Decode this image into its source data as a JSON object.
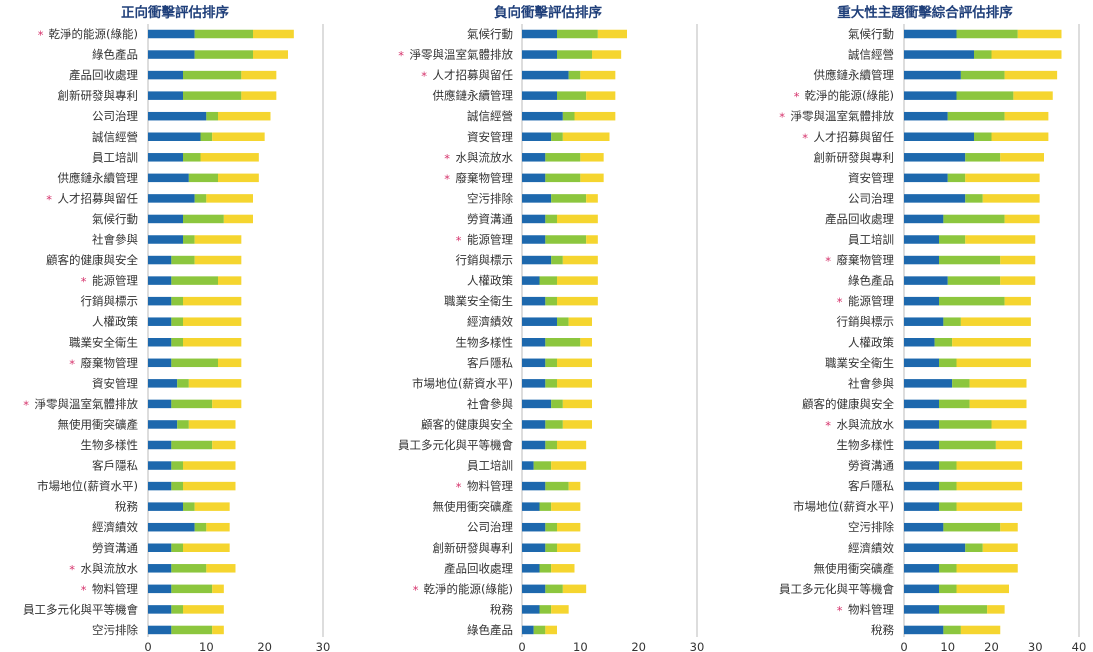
{
  "colors": {
    "low": "#1d68ad",
    "mid": "#8cc63e",
    "high": "#f5d52f",
    "star": "#d6336c",
    "title": "#1f3f7a",
    "grid": "#bbbbbb"
  },
  "chart_data": [
    {
      "type": "bar",
      "stacked": true,
      "orientation": "horizontal",
      "title": "正向衝擊評估排序",
      "xlim": [
        0,
        30
      ],
      "xticks": [
        0,
        10,
        20,
        30
      ],
      "categories": [
        "乾淨的能源(綠能)",
        "綠色產品",
        "產品回收處理",
        "創新研發與專利",
        "公司治理",
        "誠信經營",
        "員工培訓",
        "供應鏈永續管理",
        "人才招募與留任",
        "氣候行動",
        "社會參與",
        "顧客的健康與安全",
        "能源管理",
        "行銷與標示",
        "人權政策",
        "職業安全衛生",
        "廢棄物管理",
        "資安管理",
        "淨零與溫室氣體排放",
        "無使用衝突礦產",
        "生物多樣性",
        "客戶隱私",
        "市場地位(薪資水平)",
        "稅務",
        "經濟績效",
        "勞資溝通",
        "水與流放水",
        "物料管理",
        "員工多元化與平等機會",
        "空污排除"
      ],
      "starred": [
        "乾淨的能源(綠能)",
        "人才招募與留任",
        "能源管理",
        "廢棄物管理",
        "淨零與溫室氣體排放",
        "水與流放水",
        "物料管理"
      ],
      "series": [
        {
          "values": [
            8,
            8,
            6,
            6,
            10,
            9,
            6,
            7,
            8,
            6,
            6,
            4,
            4,
            4,
            4,
            4,
            4,
            5,
            4,
            5,
            4,
            4,
            4,
            6,
            8,
            4,
            4,
            4,
            4,
            4
          ]
        },
        {
          "values": [
            10,
            10,
            10,
            10,
            2,
            2,
            3,
            5,
            2,
            7,
            2,
            4,
            8,
            2,
            2,
            2,
            8,
            2,
            7,
            2,
            7,
            2,
            2,
            2,
            2,
            2,
            6,
            7,
            2,
            7
          ]
        },
        {
          "values": [
            7,
            6,
            6,
            6,
            9,
            9,
            10,
            7,
            8,
            5,
            8,
            8,
            4,
            10,
            10,
            10,
            4,
            9,
            5,
            8,
            4,
            9,
            9,
            6,
            4,
            8,
            5,
            2,
            7,
            2
          ]
        }
      ]
    },
    {
      "type": "bar",
      "stacked": true,
      "orientation": "horizontal",
      "title": "負向衝擊評估排序",
      "xlim": [
        0,
        30
      ],
      "xticks": [
        0,
        10,
        20,
        30
      ],
      "categories": [
        "氣候行動",
        "淨零與溫室氣體排放",
        "人才招募與留任",
        "供應鏈永續管理",
        "誠信經營",
        "資安管理",
        "水與流放水",
        "廢棄物管理",
        "空污排除",
        "勞資溝通",
        "能源管理",
        "行銷與標示",
        "人權政策",
        "職業安全衛生",
        "經濟績效",
        "生物多樣性",
        "客戶隱私",
        "市場地位(薪資水平)",
        "社會參與",
        "顧客的健康與安全",
        "員工多元化與平等機會",
        "員工培訓",
        "物料管理",
        "無使用衝突礦產",
        "公司治理",
        "創新研發與專利",
        "產品回收處理",
        "乾淨的能源(綠能)",
        "稅務",
        "綠色產品"
      ],
      "starred": [
        "淨零與溫室氣體排放",
        "人才招募與留任",
        "水與流放水",
        "廢棄物管理",
        "能源管理",
        "物料管理",
        "乾淨的能源(綠能)"
      ],
      "series": [
        {
          "values": [
            6,
            6,
            8,
            6,
            7,
            5,
            4,
            4,
            5,
            4,
            4,
            5,
            3,
            4,
            6,
            4,
            4,
            4,
            5,
            4,
            4,
            2,
            4,
            3,
            4,
            4,
            3,
            4,
            3,
            2
          ]
        },
        {
          "values": [
            7,
            6,
            2,
            5,
            2,
            2,
            6,
            6,
            6,
            2,
            7,
            2,
            3,
            2,
            2,
            6,
            2,
            2,
            2,
            3,
            2,
            3,
            4,
            2,
            2,
            2,
            2,
            3,
            2,
            2
          ]
        },
        {
          "values": [
            5,
            5,
            6,
            5,
            7,
            8,
            4,
            4,
            2,
            7,
            2,
            6,
            7,
            7,
            4,
            2,
            6,
            6,
            5,
            5,
            5,
            6,
            2,
            5,
            4,
            4,
            4,
            4,
            3,
            2
          ]
        }
      ]
    },
    {
      "type": "bar",
      "stacked": true,
      "orientation": "horizontal",
      "title": "重大性主題衝擊綜合評估排序",
      "xlim": [
        0,
        40
      ],
      "xticks": [
        0,
        10,
        20,
        30,
        40
      ],
      "categories": [
        "氣候行動",
        "誠信經營",
        "供應鏈永續管理",
        "乾淨的能源(綠能)",
        "淨零與溫室氣體排放",
        "人才招募與留任",
        "創新研發與專利",
        "資安管理",
        "公司治理",
        "產品回收處理",
        "員工培訓",
        "廢棄物管理",
        "綠色產品",
        "能源管理",
        "行銷與標示",
        "人權政策",
        "職業安全衛生",
        "社會參與",
        "顧客的健康與安全",
        "水與流放水",
        "生物多樣性",
        "勞資溝通",
        "客戶隱私",
        "市場地位(薪資水平)",
        "空污排除",
        "經濟績效",
        "無使用衝突礦產",
        "員工多元化與平等機會",
        "物料管理",
        "稅務"
      ],
      "starred": [
        "乾淨的能源(綠能)",
        "淨零與溫室氣體排放",
        "人才招募與留任",
        "廢棄物管理",
        "能源管理",
        "水與流放水",
        "物料管理"
      ],
      "series": [
        {
          "values": [
            12,
            16,
            13,
            12,
            10,
            16,
            14,
            10,
            14,
            9,
            8,
            8,
            10,
            8,
            9,
            7,
            8,
            11,
            8,
            8,
            8,
            8,
            8,
            8,
            9,
            14,
            8,
            8,
            8,
            9
          ]
        },
        {
          "values": [
            14,
            4,
            10,
            13,
            13,
            4,
            8,
            4,
            4,
            14,
            6,
            14,
            12,
            15,
            4,
            4,
            4,
            4,
            7,
            12,
            13,
            4,
            4,
            4,
            13,
            4,
            4,
            4,
            11,
            4
          ]
        },
        {
          "values": [
            10,
            16,
            12,
            9,
            10,
            13,
            10,
            17,
            13,
            8,
            16,
            8,
            8,
            6,
            16,
            18,
            17,
            13,
            13,
            8,
            6,
            15,
            15,
            15,
            4,
            8,
            14,
            12,
            4,
            9
          ]
        }
      ]
    }
  ]
}
